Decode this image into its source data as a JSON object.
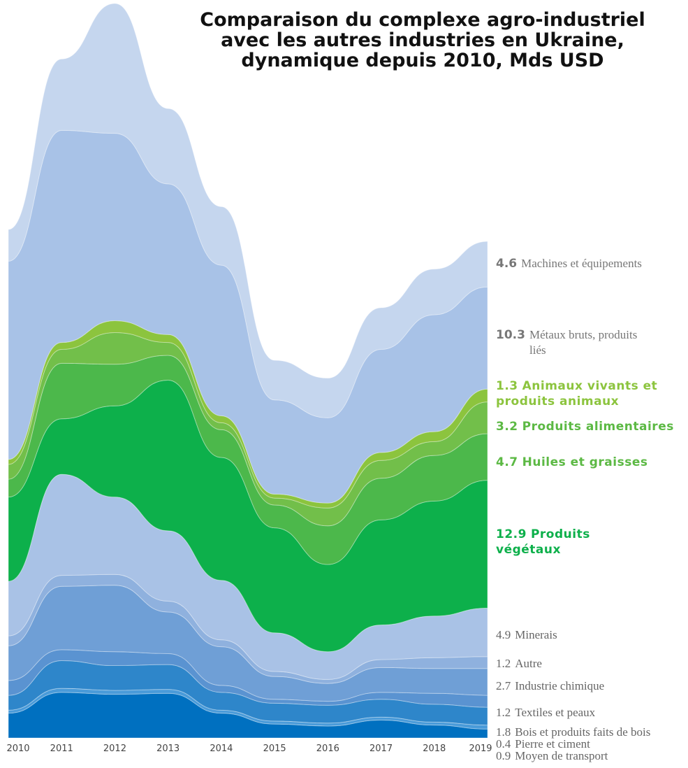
{
  "chart_data": {
    "type": "streamgraph",
    "title": [
      "Comparaison du complexe agro-industriel",
      "avec les autres industries en Ukraine,",
      "dynamique depuis 2010, Mds USD"
    ],
    "categories": [
      "2010",
      "2011",
      "2012",
      "2013",
      "2014",
      "2015",
      "2016",
      "2017",
      "2018",
      "2019"
    ],
    "series": [
      {
        "name": "Machines et équipements",
        "color": "#c5d6ee",
        "values": [
          3.2,
          7.2,
          13.1,
          7.6,
          5.9,
          4.0,
          4.0,
          4.2,
          4.6,
          4.6
        ]
      },
      {
        "name": "Métaux bruts, produits liés",
        "color": "#a8c2e7",
        "values": [
          20,
          21.4,
          18.9,
          15.2,
          15.2,
          9.5,
          8.6,
          10.4,
          11.8,
          10.3
        ]
      },
      {
        "name": "Animaux vivants et produits animaux",
        "color": "#8cc43e",
        "values": [
          0.5,
          0.7,
          1.2,
          0.8,
          0.7,
          0.4,
          0.5,
          0.8,
          1.0,
          1.3
        ]
      },
      {
        "name": "Produits alimentaires",
        "color": "#72bf4a",
        "values": [
          1.5,
          1.4,
          3.2,
          1.3,
          0.7,
          0.7,
          1.8,
          1.8,
          1.4,
          3.2
        ]
      },
      {
        "name": "Huiles et graisses",
        "color": "#4cb84b",
        "values": [
          1.8,
          5.6,
          4.2,
          2.5,
          2.8,
          2.3,
          3.9,
          4.2,
          4.6,
          4.7
        ]
      },
      {
        "name": "Produits végétaux",
        "color": "#0db04b",
        "values": [
          8.5,
          5.6,
          9.2,
          15.2,
          12.4,
          10.6,
          8.8,
          10.6,
          11.6,
          12.9
        ]
      },
      {
        "name": "Minerais",
        "color": "#a9c2e6",
        "values": [
          5.5,
          10.2,
          7.8,
          7.1,
          6.0,
          3.9,
          2.8,
          3.5,
          4.2,
          4.9
        ]
      },
      {
        "name": "Autre",
        "color": "#8fb1de",
        "values": [
          1.0,
          1.1,
          1.1,
          1.1,
          0.7,
          0.5,
          0.4,
          0.8,
          1.1,
          1.2
        ]
      },
      {
        "name": "Industrie chimique",
        "color": "#6f9fd6",
        "values": [
          3.5,
          6.4,
          6.7,
          4.2,
          3.9,
          2.3,
          1.8,
          2.5,
          2.5,
          2.7
        ]
      },
      {
        "name": "Textiles et peaux",
        "color": "#5a93d1",
        "values": [
          1.5,
          1.1,
          1.4,
          1.1,
          0.7,
          0.4,
          0.4,
          0.7,
          1.1,
          1.2
        ]
      },
      {
        "name": "Bois et produits faits de bois",
        "color": "#2e86ca",
        "values": [
          1.5,
          2.8,
          2.5,
          2.5,
          1.8,
          1.8,
          1.8,
          1.8,
          1.8,
          1.8
        ]
      },
      {
        "name": "Pierre et ciment",
        "color": "#4a9bd9",
        "values": [
          0.3,
          0.4,
          0.4,
          0.4,
          0.3,
          0.3,
          0.3,
          0.3,
          0.3,
          0.4
        ]
      },
      {
        "name": "Moyen de transport",
        "color": "#0070c0",
        "values": [
          2.5,
          4.6,
          4.4,
          4.5,
          2.5,
          1.4,
          1.2,
          1.8,
          1.3,
          0.9
        ]
      }
    ]
  }
}
